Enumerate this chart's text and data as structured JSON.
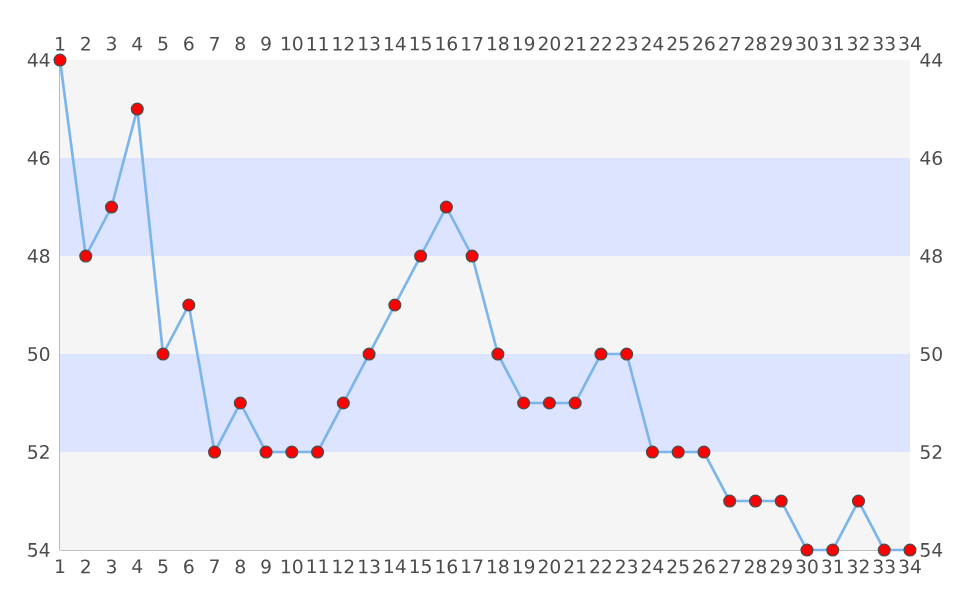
{
  "chart_data": {
    "type": "line",
    "x": [
      1,
      2,
      3,
      4,
      5,
      6,
      7,
      8,
      9,
      10,
      11,
      12,
      13,
      14,
      15,
      16,
      17,
      18,
      19,
      20,
      21,
      22,
      23,
      24,
      25,
      26,
      27,
      28,
      29,
      30,
      31,
      32,
      33,
      34
    ],
    "series": [
      {
        "color": "#7cb5ec",
        "values": [
          44,
          48,
          47,
          45,
          50,
          49,
          52,
          51,
          52,
          52,
          52,
          51,
          50,
          49,
          48,
          47,
          48,
          50,
          51,
          51,
          51,
          50,
          50,
          52,
          52,
          52,
          53,
          53,
          53,
          54,
          54,
          53,
          54,
          54
        ]
      }
    ],
    "xlim": [
      1,
      34
    ],
    "xticks": [
      1,
      2,
      3,
      4,
      5,
      6,
      7,
      8,
      9,
      10,
      11,
      12,
      13,
      14,
      15,
      16,
      17,
      18,
      19,
      20,
      21,
      22,
      23,
      24,
      25,
      26,
      27,
      28,
      29,
      30,
      31,
      32,
      33,
      34
    ],
    "x2lim": [
      1,
      34
    ],
    "x2ticks": [
      1,
      2,
      3,
      4,
      5,
      6,
      7,
      8,
      9,
      10,
      11,
      12,
      13,
      14,
      15,
      16,
      17,
      18,
      19,
      20,
      21,
      22,
      23,
      24,
      25,
      26,
      27,
      28,
      29,
      30,
      31,
      32,
      33,
      34
    ],
    "ylim": [
      54,
      44
    ],
    "yticks": [
      44,
      46,
      48,
      50,
      52,
      54
    ],
    "y2lim": [
      54,
      44
    ],
    "y2ticks": [
      44,
      46,
      48,
      50,
      52,
      54
    ],
    "bands": [
      {
        "axis": "y",
        "from": 44,
        "to": 46,
        "color": "#f5f5f5"
      },
      {
        "axis": "y",
        "from": 46,
        "to": 48,
        "color": "#dde4ff"
      },
      {
        "axis": "y",
        "from": 48,
        "to": 50,
        "color": "#f5f5f5"
      },
      {
        "axis": "y",
        "from": 50,
        "to": 52,
        "color": "#dde4ff"
      },
      {
        "axis": "y",
        "from": 52,
        "to": 54,
        "color": "#f5f5f5"
      }
    ],
    "marker": "circle",
    "line_style": "solid"
  }
}
